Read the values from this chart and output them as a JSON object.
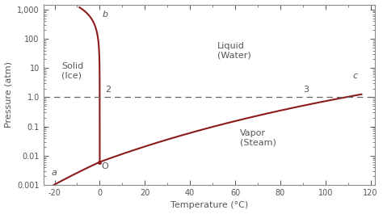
{
  "xlabel": "Temperature (°C)",
  "ylabel": "Pressure (atm)",
  "xlim": [
    -25,
    122
  ],
  "ylim_log": [
    0.001,
    1500
  ],
  "dashed_line_y": 1.0,
  "curve_color": "#8B1a1a",
  "dashed_color": "#666666",
  "background_color": "#ffffff",
  "label_color": "#555555",
  "T_triple": 0.01,
  "P_triple": 0.00611,
  "yticks": [
    0.001,
    0.01,
    0.1,
    1.0,
    10,
    100,
    1000
  ],
  "ytick_labels": [
    "0.001",
    "0.01",
    "0.1",
    "1.0",
    "10",
    "100",
    "1,000"
  ],
  "xticks": [
    -20,
    0,
    20,
    40,
    60,
    80,
    100,
    120
  ],
  "ann_a": [
    -21.5,
    0.00195
  ],
  "ann_b": [
    1.2,
    500
  ],
  "ann_c": [
    112,
    5.5
  ],
  "ann_O": [
    0.8,
    0.0058
  ],
  "ann_2": [
    2.5,
    1.35
  ],
  "ann_3": [
    90,
    1.35
  ],
  "solid_ice_x": -17,
  "solid_ice_y": 8.0,
  "liquid_water_x": 52,
  "liquid_water_y": 40,
  "vapor_steam_x": 62,
  "vapor_steam_y": 0.04,
  "fontsize_labels": 8,
  "fontsize_ticks": 7,
  "fontsize_ann": 8,
  "fontsize_phase": 8
}
